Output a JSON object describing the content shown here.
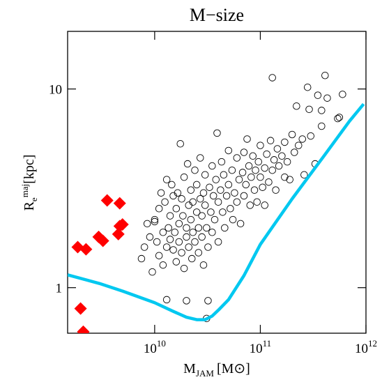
{
  "chart_data": {
    "type": "scatter",
    "title": "M−size",
    "x_label": {
      "main": "M",
      "sub": "JAM",
      "unit": "[M⊙]"
    },
    "y_label": {
      "main": "R",
      "sub": "e",
      "sup": "maj",
      "unit": "[kpc]"
    },
    "x_log": true,
    "y_log": true,
    "xlim": [
      1500000000,
      1000000000000
    ],
    "ylim": [
      0.59,
      19.5
    ],
    "xticks": [
      {
        "value": 10000000000,
        "label": "10",
        "exponent": "10"
      },
      {
        "value": 100000000000,
        "label": "10",
        "exponent": "11"
      },
      {
        "value": 1000000000000,
        "label": "10",
        "exponent": "12"
      }
    ],
    "yticks": [
      1,
      10
    ],
    "series": [
      {
        "marker": "circle",
        "color": "#000000",
        "x": [
          7500000000.0,
          8000000000.0,
          8500000000.0,
          9000000000.0,
          9500000000.0,
          10000000000.0,
          10000000000.0,
          10500000000.0,
          11000000000.0,
          11000000000.0,
          11500000000.0,
          12000000000.0,
          12000000000.0,
          12500000000.0,
          13000000000.0,
          13000000000.0,
          13000000000.0,
          13500000000.0,
          14000000000.0,
          14000000000.0,
          14500000000.0,
          15000000000.0,
          15000000000.0,
          15500000000.0,
          16000000000.0,
          16000000000.0,
          16500000000.0,
          17000000000.0,
          17000000000.0,
          17500000000.0,
          18000000000.0,
          18000000000.0,
          18500000000.0,
          19000000000.0,
          19000000000.0,
          20000000000.0,
          20000000000.0,
          20000000000.0,
          20500000000.0,
          21000000000.0,
          21000000000.0,
          22000000000.0,
          22000000000.0,
          22500000000.0,
          23000000000.0,
          23000000000.0,
          24000000000.0,
          24000000000.0,
          25000000000.0,
          25000000000.0,
          26000000000.0,
          26000000000.0,
          27000000000.0,
          27000000000.0,
          28000000000.0,
          28000000000.0,
          29000000000.0,
          29000000000.0,
          30000000000.0,
          30000000000.0,
          31000000000.0,
          31000000000.0,
          32000000000.0,
          32000000000.0,
          33000000000.0,
          34000000000.0,
          35000000000.0,
          35000000000.0,
          36000000000.0,
          37000000000.0,
          38000000000.0,
          39000000000.0,
          40000000000.0,
          40000000000.0,
          42000000000.0,
          43000000000.0,
          44000000000.0,
          45000000000.0,
          46000000000.0,
          48000000000.0,
          50000000000.0,
          50000000000.0,
          52000000000.0,
          54000000000.0,
          55000000000.0,
          57000000000.0,
          60000000000.0,
          60000000000.0,
          63000000000.0,
          65000000000.0,
          68000000000.0,
          70000000000.0,
          70000000000.0,
          73000000000.0,
          75000000000.0,
          78000000000.0,
          80000000000.0,
          82000000000.0,
          85000000000.0,
          88000000000.0,
          90000000000.0,
          93000000000.0,
          96000000000.0,
          100000000000.0,
          100000000000.0,
          105000000000.0,
          110000000000.0,
          110000000000.0,
          115000000000.0,
          120000000000.0,
          125000000000.0,
          130000000000.0,
          130000000000.0,
          135000000000.0,
          140000000000.0,
          145000000000.0,
          150000000000.0,
          160000000000.0,
          170000000000.0,
          170000000000.0,
          180000000000.0,
          190000000000.0,
          200000000000.0,
          210000000000.0,
          220000000000.0,
          230000000000.0,
          250000000000.0,
          260000000000.0,
          280000000000.0,
          290000000000.0,
          300000000000.0,
          330000000000.0,
          350000000000.0,
          380000000000.0,
          380000000000.0,
          410000000000.0,
          430000000000.0,
          540000000000.0,
          560000000000.0,
          600000000000.0
        ],
        "y": [
          1.4,
          1.6,
          2.1,
          1.8,
          1.2,
          2.2,
          2.15,
          1.7,
          1.45,
          2.5,
          3.0,
          1.9,
          1.3,
          2.7,
          3.5,
          1.6,
          0.87,
          2.0,
          1.75,
          2.3,
          3.3,
          1.55,
          2.9,
          1.9,
          2.5,
          1.35,
          3.0,
          2.1,
          1.7,
          5.3,
          2.8,
          1.5,
          2.3,
          3.6,
          1.25,
          0.86,
          2.0,
          1.8,
          4.2,
          2.6,
          1.6,
          3.1,
          2.2,
          1.4,
          1.9,
          2.7,
          3.9,
          1.7,
          2.4,
          3.3,
          2.0,
          1.5,
          2.8,
          4.5,
          1.8,
          2.3,
          3.0,
          1.3,
          2.6,
          3.7,
          2.0,
          0.7,
          0.86,
          1.6,
          3.2,
          2.4,
          4.1,
          1.9,
          2.9,
          2.2,
          3.5,
          6.0,
          2.7,
          1.7,
          3.1,
          4.3,
          2.4,
          3.7,
          2.0,
          2.9,
          3.3,
          4.9,
          2.5,
          3.9,
          2.2,
          3.0,
          4.5,
          2.7,
          3.5,
          2.1,
          3.8,
          4.8,
          2.9,
          3.3,
          5.6,
          4.1,
          2.6,
          3.6,
          4.6,
          3.1,
          3.9,
          2.7,
          4.3,
          3.6,
          5.2,
          3.2,
          4.0,
          2.6,
          4.7,
          3.4,
          5.5,
          11.4,
          3.9,
          4.4,
          3.1,
          5.0,
          4.1,
          4.6,
          3.6,
          5.4,
          4.3,
          3.5,
          5.9,
          4.8,
          8.2,
          5.2,
          5.6,
          3.7,
          10.2,
          7.9,
          5.8,
          4.2,
          9.3,
          7.8,
          6.5,
          11.7,
          9.0,
          7.1,
          7.2,
          9.4
        ]
      },
      {
        "marker": "diamond",
        "color": "#ff0000",
        "x": [
          1870000000.0,
          2240000000.0,
          2950000000.0,
          3240000000.0,
          3550000000.0,
          4670000000.0,
          4670000000.0,
          4960000000.0,
          4530000000.0,
          1990000000.0,
          2110000000.0
        ],
        "y": [
          1.6,
          1.56,
          1.8,
          1.72,
          2.75,
          2.66,
          2.04,
          2.08,
          1.86,
          0.785,
          0.6
        ]
      },
      {
        "marker": "line",
        "color": "#00c8f0",
        "x": [
          1500000000.0,
          3000000000.0,
          5000000000.0,
          10000000000.0,
          15000000000.0,
          20000000000.0,
          25000000000.0,
          30000000000.0,
          35000000000.0,
          40000000000.0,
          50000000000.0,
          70000000000.0,
          100000000000.0,
          200000000000.0,
          400000000000.0,
          700000000000.0,
          950000000000.0
        ],
        "y": [
          1.16,
          1.05,
          0.96,
          0.84,
          0.76,
          0.71,
          0.69,
          0.69,
          0.72,
          0.77,
          0.87,
          1.15,
          1.65,
          2.8,
          4.6,
          6.9,
          8.4
        ]
      }
    ]
  }
}
